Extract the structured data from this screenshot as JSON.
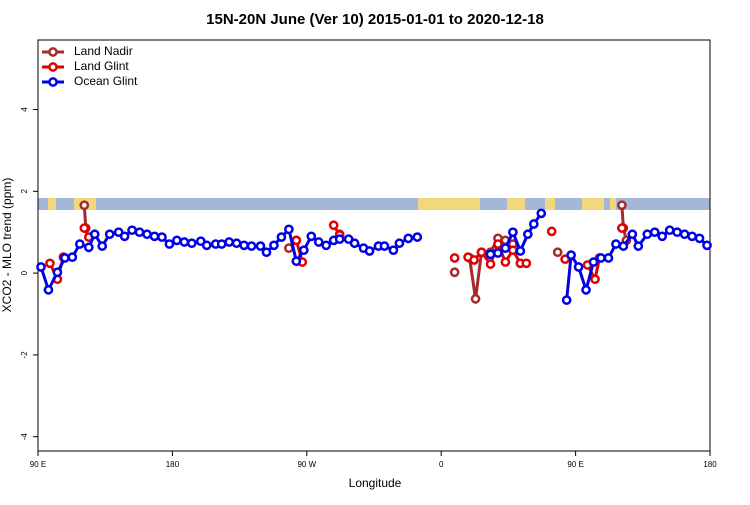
{
  "chart_data": {
    "type": "line",
    "title": "15N-20N June (Ver 10)   2015-01-01 to 2020-12-18",
    "x_label": "Longitude",
    "y_label": "XCO2 - MLO trend (ppm)",
    "xlim": [
      90,
      540
    ],
    "xticks": [
      {
        "value": 90,
        "label": "90 E"
      },
      {
        "value": 180,
        "label": "180"
      },
      {
        "value": 270,
        "label": "90 W"
      },
      {
        "value": 360,
        "label": "0"
      },
      {
        "value": 450,
        "label": "90 E"
      },
      {
        "value": 540,
        "label": "180"
      }
    ],
    "ylim": [
      -4.35,
      5.7
    ],
    "yticks": [
      -4,
      -2,
      0,
      2,
      4
    ],
    "legend": "top-left",
    "series": [
      {
        "name": "Land Nadir",
        "color": "#a52a2a",
        "x": [
          121,
          122,
          null,
          258,
          263,
          null,
          292,
          null,
          369,
          null,
          379,
          383,
          387,
          393,
          398,
          403,
          408,
          null,
          438,
          null,
          481,
          482,
          484
        ],
        "values": [
          1.66,
          1.1,
          null,
          0.61,
          0.8,
          null,
          0.95,
          null,
          0.02,
          null,
          0.37,
          -0.63,
          0.51,
          0.51,
          0.85,
          0.8,
          0.71,
          null,
          0.51,
          null,
          1.66,
          1.1,
          0.8
        ]
      },
      {
        "name": "Land Glint",
        "color": "#e00000",
        "x": [
          98,
          103,
          107,
          null,
          121,
          124,
          null,
          263,
          267,
          null,
          288,
          292,
          null,
          369,
          null,
          378,
          382,
          387,
          393,
          398,
          403,
          408,
          413,
          417,
          null,
          434,
          null,
          443,
          null,
          458,
          463,
          466,
          null,
          481
        ],
        "values": [
          0.24,
          -0.15,
          0.39,
          null,
          1.1,
          0.88,
          null,
          0.8,
          0.27,
          null,
          1.17,
          0.93,
          null,
          0.37,
          null,
          0.39,
          0.32,
          0.51,
          0.22,
          0.71,
          0.27,
          0.56,
          0.24,
          0.24,
          null,
          1.02,
          null,
          0.34,
          null,
          0.2,
          -0.15,
          0.37,
          null,
          1.1
        ]
      },
      {
        "name": "Ocean Glint",
        "color": "#0000e6",
        "x": [
          92,
          97,
          103,
          108,
          113,
          118,
          124,
          128,
          133,
          138,
          144,
          148,
          153,
          158,
          163,
          168,
          173,
          178,
          183,
          188,
          193,
          199,
          203,
          209,
          213,
          218,
          223,
          228,
          233,
          239,
          243,
          248,
          253,
          258,
          263,
          268,
          273,
          278,
          283,
          288,
          292,
          298,
          302,
          308,
          312,
          318,
          322,
          328,
          332,
          338,
          344,
          null,
          393,
          398,
          403,
          408,
          413,
          418,
          422,
          427,
          null,
          444,
          447,
          452,
          457,
          462,
          467,
          472,
          477,
          482,
          488,
          492,
          498,
          503,
          508,
          513,
          518,
          523,
          528,
          533,
          538
        ],
        "values": [
          0.15,
          -0.41,
          0.02,
          0.37,
          0.39,
          0.71,
          0.63,
          0.95,
          0.66,
          0.95,
          1.0,
          0.9,
          1.05,
          1.0,
          0.95,
          0.9,
          0.88,
          0.71,
          0.8,
          0.76,
          0.73,
          0.78,
          0.68,
          0.71,
          0.71,
          0.76,
          0.73,
          0.68,
          0.66,
          0.66,
          0.51,
          0.68,
          0.88,
          1.07,
          0.29,
          0.56,
          0.9,
          0.76,
          0.68,
          0.8,
          0.83,
          0.83,
          0.73,
          0.61,
          0.54,
          0.66,
          0.66,
          0.56,
          0.73,
          0.85,
          0.88,
          null,
          0.46,
          0.49,
          0.61,
          1.0,
          0.54,
          0.95,
          1.2,
          1.46,
          null,
          -0.66,
          0.44,
          0.15,
          -0.41,
          0.27,
          0.37,
          0.37,
          0.71,
          0.66,
          0.95,
          0.66,
          0.95,
          1.0,
          0.9,
          1.05,
          1.0,
          0.95,
          0.9,
          0.85,
          0.68
        ]
      }
    ]
  }
}
